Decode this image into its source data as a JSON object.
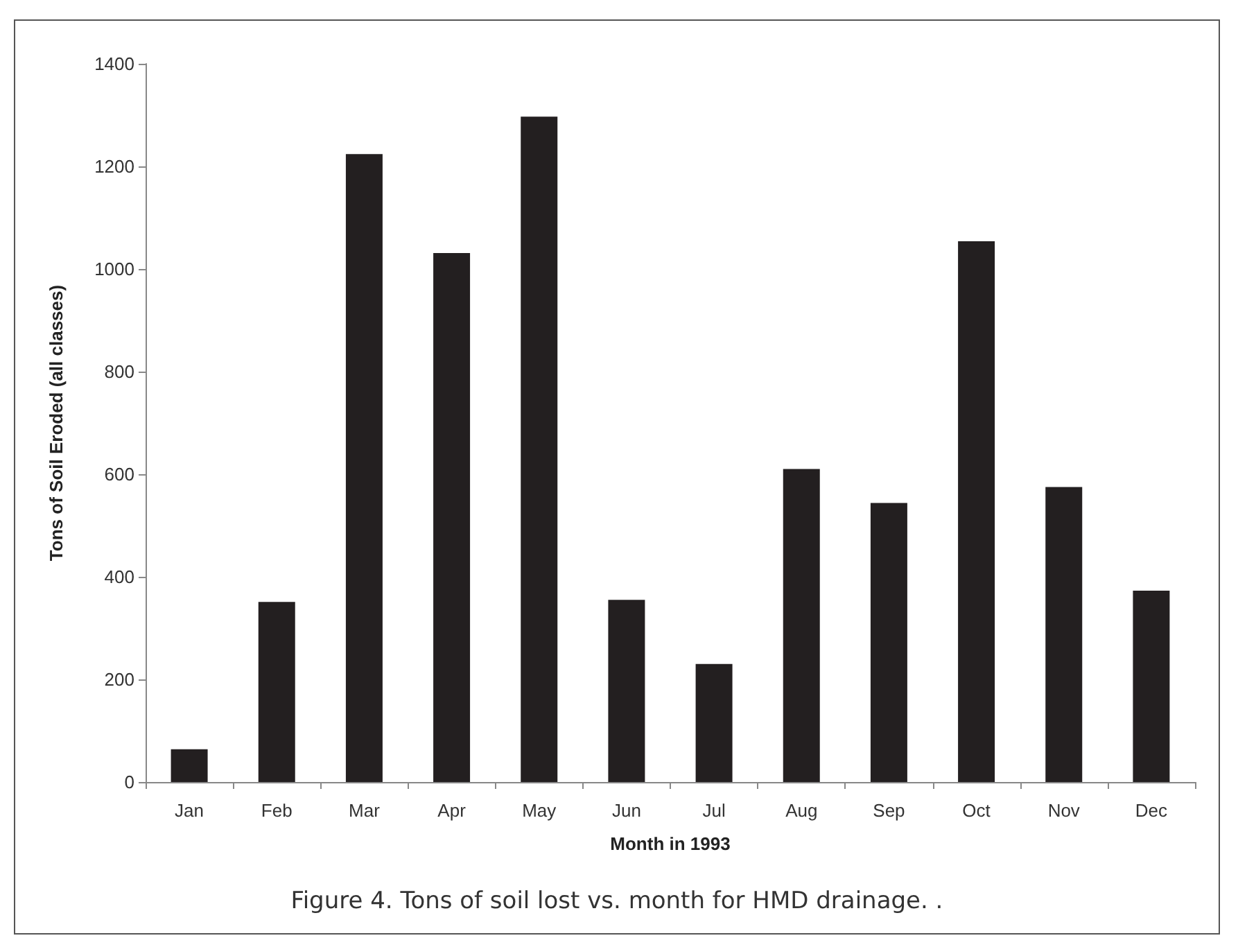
{
  "chart_data": {
    "type": "bar",
    "categories": [
      "Jan",
      "Feb",
      "Mar",
      "Apr",
      "May",
      "Jun",
      "Jul",
      "Aug",
      "Sep",
      "Oct",
      "Nov",
      "Dec"
    ],
    "values": [
      64,
      351,
      1224,
      1031,
      1297,
      355,
      230,
      610,
      544,
      1054,
      575,
      373
    ],
    "color": "#231f20",
    "xlabel": "Month in 1993",
    "ylabel": "Tons of Soil Eroded (all classes)",
    "ylim": [
      0,
      1400
    ],
    "yticks": [
      0,
      200,
      400,
      600,
      800,
      1000,
      1200,
      1400
    ],
    "grid": false,
    "annotations": [
      "Figure 4. Tons of soil lost vs. month for HMD drainage. ."
    ]
  }
}
